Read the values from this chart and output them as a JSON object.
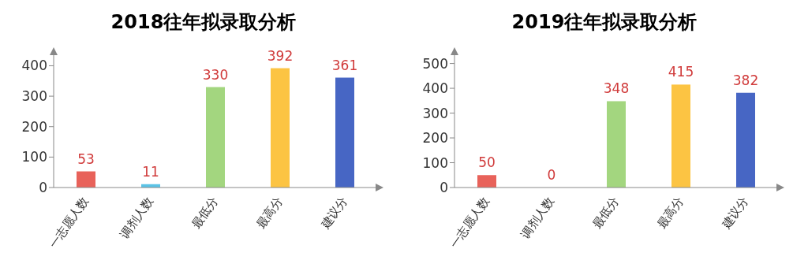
{
  "chart_data": [
    {
      "type": "bar",
      "title": "2018往年拟录取分析",
      "categories": [
        "一志愿人数",
        "调剂人数",
        "最低分",
        "最高分",
        "建议分"
      ],
      "values": [
        53,
        11,
        330,
        392,
        361
      ],
      "colors": [
        "#e8625a",
        "#5bc3e6",
        "#a3d67f",
        "#fcc443",
        "#4766c4"
      ],
      "ylim": [
        0,
        440
      ],
      "yticks": [
        0,
        100,
        200,
        300,
        400
      ],
      "data_labels": true,
      "grid": false,
      "legend": false
    },
    {
      "type": "bar",
      "title": "2019往年拟录取分析",
      "categories": [
        "一志愿人数",
        "调剂人数",
        "最低分",
        "最高分",
        "建议分"
      ],
      "values": [
        50,
        0,
        348,
        415,
        382
      ],
      "colors": [
        "#e8625a",
        "#5bc3e6",
        "#a3d67f",
        "#fcc443",
        "#4766c4"
      ],
      "ylim": [
        0,
        540
      ],
      "yticks": [
        0,
        100,
        200,
        300,
        400,
        500
      ],
      "data_labels": true,
      "grid": false,
      "legend": false
    }
  ]
}
